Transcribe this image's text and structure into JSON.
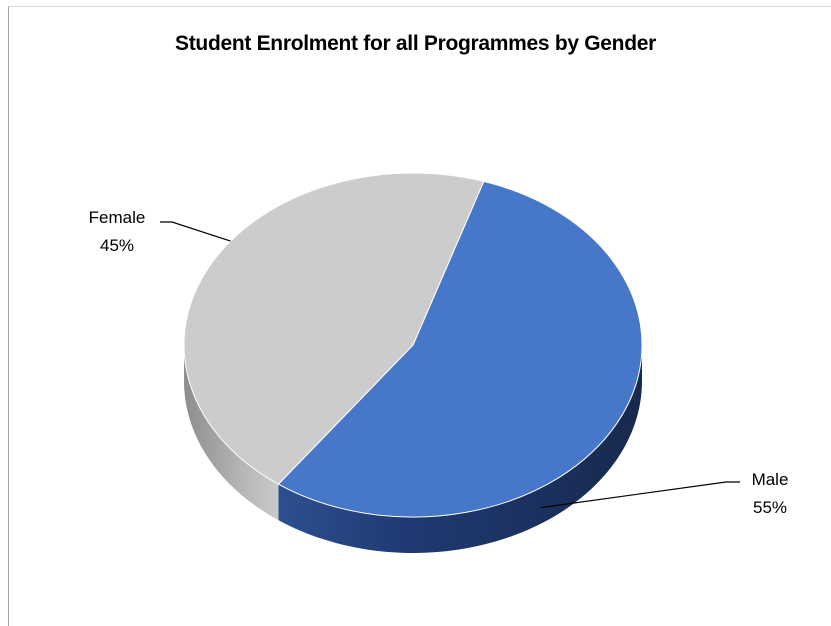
{
  "chart_data": {
    "type": "pie",
    "title": "Student Enrolment for all Programmes by Gender",
    "categories": [
      "Female",
      "Male"
    ],
    "values": [
      45,
      55
    ],
    "labels": [
      "Female\n45%",
      "Male\n55%"
    ],
    "colors": [
      "#cccccc",
      "#4677c8"
    ],
    "side_colors": [
      "#9a9a9a",
      "#1f3566"
    ],
    "style": "3d"
  }
}
